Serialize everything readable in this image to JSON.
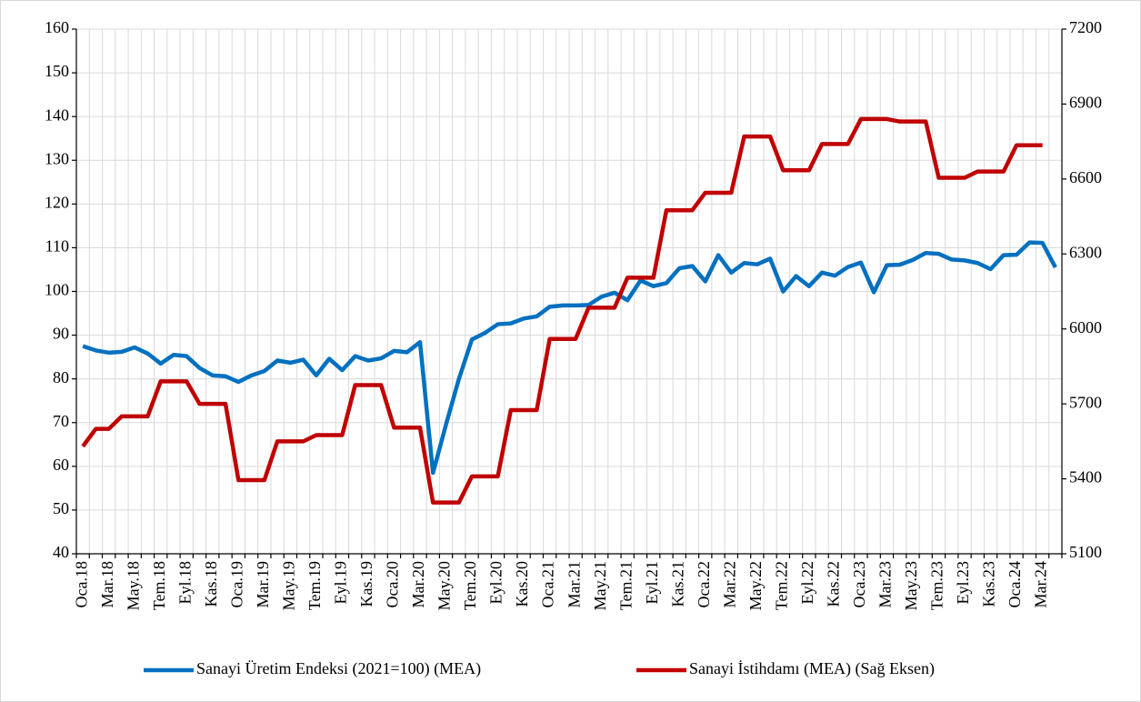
{
  "chart_data": {
    "type": "line",
    "categories": [
      "Oca.18",
      null,
      "Mar.18",
      null,
      "May.18",
      null,
      "Tem.18",
      null,
      "Eyl.18",
      null,
      "Kas.18",
      null,
      "Oca.19",
      null,
      "Mar.19",
      null,
      "May.19",
      null,
      "Tem.19",
      null,
      "Eyl.19",
      null,
      "Kas.19",
      null,
      "Oca.20",
      null,
      "Mar.20",
      null,
      "May.20",
      null,
      "Tem.20",
      null,
      "Eyl.20",
      null,
      "Kas.20",
      null,
      "Oca.21",
      null,
      "Mar.21",
      null,
      "May.21",
      null,
      "Tem.21",
      null,
      "Eyl.21",
      null,
      "Kas.21",
      null,
      "Oca.22",
      null,
      "Mar.22",
      null,
      "May.22",
      null,
      "Tem.22",
      null,
      "Eyl.22",
      null,
      "Kas.22",
      null,
      "Oca.23",
      null,
      "Mar.23",
      null,
      "May.23",
      null,
      "Tem.23",
      null,
      "Eyl.23",
      null,
      "Kas.23",
      null,
      "Oca.24",
      null,
      "Mar.24",
      null
    ],
    "series": [
      {
        "name": "Sanayi Üretim Endeksi (2021=100) (MEA)",
        "color": "#0070c0",
        "axis": "y",
        "values": [
          87.5,
          86.5,
          86,
          86.2,
          87.2,
          85.8,
          83.5,
          85.5,
          85.2,
          82.5,
          80.8,
          80.6,
          79.3,
          80.8,
          81.8,
          84.2,
          83.7,
          84.4,
          80.8,
          84.6,
          82,
          85.2,
          84.2,
          84.7,
          86.4,
          86.1,
          88.4,
          58.5,
          69.5,
          80,
          89,
          90.5,
          92.5,
          92.7,
          93.8,
          94.3,
          96.5,
          96.8,
          96.8,
          96.9,
          98.8,
          99.7,
          98,
          102.5,
          101.2,
          101.9,
          105.3,
          105.8,
          102.3,
          108.3,
          104.3,
          106.5,
          106.2,
          107.5,
          100,
          103.5,
          101.2,
          104.3,
          103.6,
          105.6,
          106.6,
          99.8,
          106,
          106.1,
          107.2,
          108.8,
          108.6,
          107.3,
          107.1,
          106.5,
          105.1,
          108.3,
          108.4,
          111.2,
          111.1,
          105.5
        ]
      },
      {
        "name": "Sanayi İstihdamı (MEA) (Sağ Eksen)",
        "color": "#c00000",
        "axis": "y2",
        "values": [
          5530,
          5600,
          5600,
          5650,
          5650,
          5650,
          5790,
          5790,
          5790,
          5700,
          5700,
          5700,
          5395,
          5395,
          5395,
          5550,
          5550,
          5550,
          5575,
          5575,
          5575,
          5775,
          5775,
          5775,
          5605,
          5605,
          5605,
          5305,
          5305,
          5305,
          5410,
          5410,
          5410,
          5675,
          5675,
          5675,
          5960,
          5960,
          5960,
          6085,
          6085,
          6085,
          6205,
          6205,
          6205,
          6475,
          6475,
          6475,
          6545,
          6545,
          6545,
          6770,
          6770,
          6770,
          6635,
          6635,
          6635,
          6740,
          6740,
          6740,
          6840,
          6840,
          6840,
          6830,
          6830,
          6830,
          6605,
          6605,
          6605,
          6630,
          6630,
          6630,
          6735,
          6735,
          6735,
          null
        ]
      }
    ],
    "ylim": [
      40,
      160
    ],
    "yticks": [
      40,
      50,
      60,
      70,
      80,
      90,
      100,
      110,
      120,
      130,
      140,
      150,
      160
    ],
    "y2lim": [
      5100,
      7200
    ],
    "y2ticks": [
      5100,
      5400,
      5700,
      6000,
      6300,
      6600,
      6900,
      7200
    ],
    "grid": true,
    "legend": "bottom"
  }
}
